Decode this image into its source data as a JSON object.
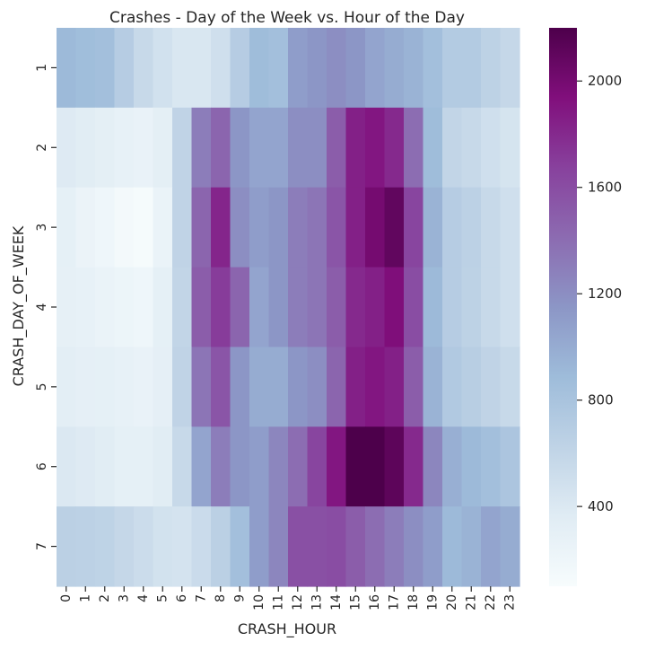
{
  "chart_data": {
    "type": "heatmap",
    "title": "Crashes - Day of the Week vs. Hour of the Day",
    "xlabel": "CRASH_HOUR",
    "ylabel": "CRASH_DAY_OF_WEEK",
    "x_categories": [
      "0",
      "1",
      "2",
      "3",
      "4",
      "5",
      "6",
      "7",
      "8",
      "9",
      "10",
      "11",
      "12",
      "13",
      "14",
      "15",
      "16",
      "17",
      "18",
      "19",
      "20",
      "21",
      "22",
      "23"
    ],
    "y_categories": [
      "1",
      "2",
      "3",
      "4",
      "5",
      "6",
      "7"
    ],
    "colorscale": "BuPu",
    "color_range": [
      100,
      2200
    ],
    "colorbar_ticks": [
      400,
      800,
      1200,
      1600,
      2000
    ],
    "values": [
      [
        900,
        870,
        850,
        700,
        560,
        480,
        420,
        420,
        500,
        700,
        880,
        850,
        1100,
        1150,
        1200,
        1150,
        1050,
        1000,
        950,
        850,
        720,
        720,
        640,
        580
      ],
      [
        380,
        350,
        320,
        280,
        260,
        320,
        620,
        1300,
        1450,
        1150,
        1050,
        1050,
        1200,
        1200,
        1500,
        1850,
        1900,
        1800,
        1400,
        880,
        600,
        560,
        500,
        450
      ],
      [
        300,
        240,
        200,
        150,
        120,
        250,
        620,
        1450,
        1820,
        1200,
        1100,
        1150,
        1300,
        1350,
        1550,
        1850,
        2000,
        2100,
        1650,
        950,
        700,
        650,
        560,
        500
      ],
      [
        290,
        280,
        250,
        220,
        200,
        300,
        600,
        1500,
        1700,
        1450,
        1050,
        1150,
        1300,
        1350,
        1500,
        1800,
        1850,
        1950,
        1600,
        900,
        700,
        640,
        560,
        500
      ],
      [
        330,
        310,
        300,
        280,
        260,
        310,
        620,
        1350,
        1550,
        1150,
        1000,
        1000,
        1150,
        1200,
        1450,
        1850,
        1900,
        1850,
        1500,
        950,
        740,
        680,
        620,
        560
      ],
      [
        400,
        380,
        350,
        300,
        300,
        350,
        560,
        1050,
        1300,
        1150,
        1100,
        1250,
        1400,
        1650,
        1900,
        2200,
        2200,
        2120,
        1800,
        1250,
        980,
        900,
        850,
        780
      ],
      [
        660,
        650,
        630,
        580,
        530,
        470,
        460,
        540,
        660,
        850,
        1100,
        1250,
        1580,
        1580,
        1600,
        1500,
        1400,
        1300,
        1200,
        1100,
        900,
        950,
        1050,
        1000
      ]
    ]
  }
}
